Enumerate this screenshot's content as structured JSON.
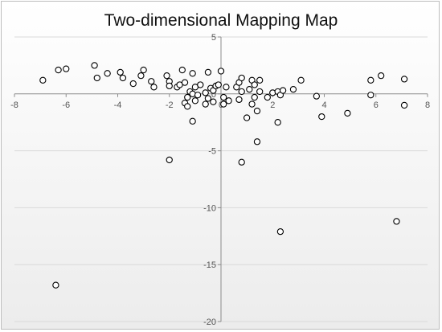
{
  "chart_data": {
    "type": "scatter",
    "title": "Two-dimensional Mapping Map",
    "xlabel": "",
    "ylabel": "",
    "xlim": [
      -8,
      8
    ],
    "ylim": [
      -20,
      5
    ],
    "xticks": [
      -8,
      -6,
      -4,
      -2,
      0,
      2,
      4,
      6,
      8
    ],
    "yticks": [
      5,
      0,
      -5,
      -10,
      -15,
      -20
    ],
    "grid": "horizontal",
    "marker": "open-circle",
    "points": [
      [
        -6.9,
        1.2
      ],
      [
        -6.3,
        2.1
      ],
      [
        -6.0,
        2.2
      ],
      [
        -4.9,
        2.5
      ],
      [
        -4.8,
        1.4
      ],
      [
        -4.4,
        1.8
      ],
      [
        -3.9,
        1.9
      ],
      [
        -3.8,
        1.4
      ],
      [
        -3.4,
        0.9
      ],
      [
        -3.1,
        1.6
      ],
      [
        -3.0,
        2.1
      ],
      [
        -2.7,
        1.1
      ],
      [
        -2.6,
        0.6
      ],
      [
        -2.1,
        1.6
      ],
      [
        -2.0,
        1.1
      ],
      [
        -2.0,
        0.7
      ],
      [
        -1.7,
        0.6
      ],
      [
        -1.6,
        0.8
      ],
      [
        -1.5,
        2.1
      ],
      [
        -1.4,
        1.0
      ],
      [
        -1.4,
        -0.8
      ],
      [
        -1.3,
        -0.3
      ],
      [
        -1.3,
        -1.1
      ],
      [
        -1.2,
        0.2
      ],
      [
        -1.1,
        1.8
      ],
      [
        -1.1,
        0.0
      ],
      [
        -1.0,
        0.6
      ],
      [
        -1.0,
        -0.6
      ],
      [
        -0.9,
        -0.1
      ],
      [
        -0.8,
        0.8
      ],
      [
        -0.6,
        0.1
      ],
      [
        -0.6,
        -0.9
      ],
      [
        -0.5,
        1.9
      ],
      [
        -0.5,
        -0.4
      ],
      [
        -0.4,
        0.5
      ],
      [
        -0.3,
        0.3
      ],
      [
        -0.3,
        -0.7
      ],
      [
        -0.2,
        0.7
      ],
      [
        -0.1,
        0.8
      ],
      [
        0.0,
        2.0
      ],
      [
        0.1,
        -0.3
      ],
      [
        0.1,
        -0.9
      ],
      [
        0.2,
        0.6
      ],
      [
        0.3,
        -0.6
      ],
      [
        0.6,
        0.6
      ],
      [
        0.7,
        -0.5
      ],
      [
        0.7,
        1.0
      ],
      [
        0.8,
        0.2
      ],
      [
        0.8,
        1.4
      ],
      [
        1.0,
        -2.1
      ],
      [
        1.1,
        0.4
      ],
      [
        1.2,
        1.2
      ],
      [
        1.2,
        -0.9
      ],
      [
        1.3,
        -0.3
      ],
      [
        1.3,
        0.8
      ],
      [
        1.4,
        -1.5
      ],
      [
        1.5,
        1.2
      ],
      [
        1.5,
        0.2
      ],
      [
        1.8,
        -0.3
      ],
      [
        2.0,
        0.1
      ],
      [
        2.2,
        0.2
      ],
      [
        2.3,
        -0.1
      ],
      [
        2.4,
        0.3
      ],
      [
        2.8,
        0.4
      ],
      [
        3.1,
        1.2
      ],
      [
        3.7,
        -0.2
      ],
      [
        3.9,
        -2.0
      ],
      [
        4.9,
        -1.7
      ],
      [
        5.8,
        -0.1
      ],
      [
        5.8,
        1.2
      ],
      [
        6.2,
        1.6
      ],
      [
        7.1,
        1.3
      ],
      [
        7.1,
        -1.0
      ],
      [
        6.8,
        -11.2
      ],
      [
        2.3,
        -12.1
      ],
      [
        -2.0,
        -5.8
      ],
      [
        0.8,
        -6.0
      ],
      [
        1.4,
        -4.2
      ],
      [
        2.2,
        -2.5
      ],
      [
        -1.1,
        -2.4
      ],
      [
        -6.4,
        -16.8
      ]
    ]
  }
}
